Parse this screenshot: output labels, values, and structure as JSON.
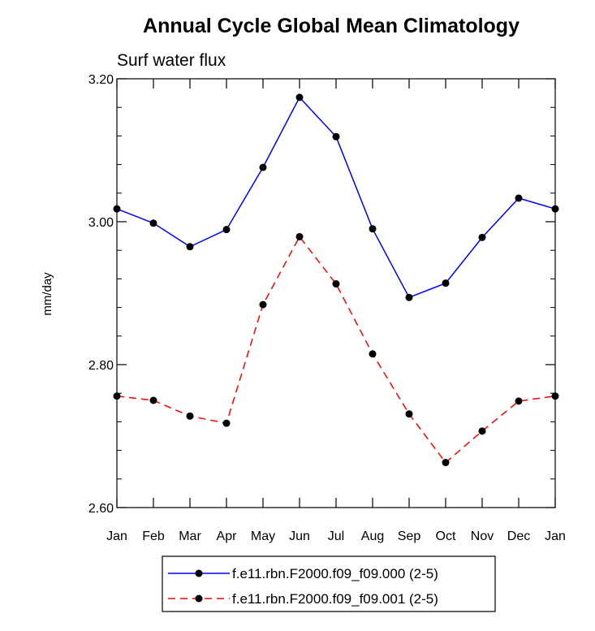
{
  "chart_data": {
    "type": "line",
    "title": "Annual Cycle Global Mean Climatology",
    "subtitle": "Surf water flux",
    "ylabel": "mm/day",
    "xlabel": "",
    "ylim": [
      2.6,
      3.2
    ],
    "yticks": [
      "2.60",
      "2.80",
      "3.00",
      "3.20"
    ],
    "categories": [
      "Jan",
      "Feb",
      "Mar",
      "Apr",
      "May",
      "Jun",
      "Jul",
      "Aug",
      "Sep",
      "Oct",
      "Nov",
      "Dec",
      "Jan"
    ],
    "grid": false,
    "legend_position": "bottom",
    "series": [
      {
        "name": "f.e11.rbn.F2000.f09_f09.000 (2-5)",
        "color": "#0000ff",
        "dash": "solid",
        "values": [
          3.018,
          2.998,
          2.965,
          2.989,
          3.076,
          3.174,
          3.119,
          2.99,
          2.894,
          2.914,
          2.978,
          3.033,
          3.018
        ]
      },
      {
        "name": "f.e11.rbn.F2000.f09_f09.001 (2-5)",
        "color": "#ff0000",
        "dash": "dashed",
        "values": [
          2.756,
          2.75,
          2.728,
          2.718,
          2.884,
          2.979,
          2.913,
          2.815,
          2.731,
          2.663,
          2.707,
          2.749,
          2.756
        ]
      }
    ]
  }
}
